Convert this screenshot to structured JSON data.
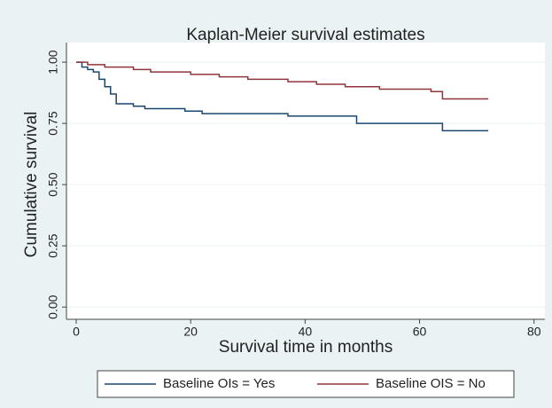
{
  "chart_data": {
    "type": "line",
    "title": "Kaplan-Meier survival estimates",
    "xlabel": "Survival time in months",
    "ylabel": "Cumulative survival",
    "xlim": [
      -1.7,
      81.9
    ],
    "ylim": [
      -0.05,
      1.08
    ],
    "xticks": [
      0,
      20,
      40,
      60,
      80
    ],
    "yticks": [
      {
        "value": 0,
        "label": "0.00"
      },
      0.25,
      {
        "value": 0.5,
        "label": "0.50"
      },
      0.75,
      {
        "value": 1,
        "label": "1.00"
      }
    ],
    "grid": true,
    "step": true,
    "legend": "bottom",
    "series": [
      {
        "name": "Baseline OIs = Yes",
        "color": "#1a476f",
        "x": [
          0,
          1,
          1,
          2,
          2,
          3,
          3,
          4,
          4,
          5,
          5,
          6,
          6,
          7,
          7,
          10,
          10,
          12,
          12,
          19,
          19,
          22,
          22,
          37,
          37,
          49,
          49,
          64,
          64,
          72
        ],
        "values": [
          1,
          1,
          0.98,
          0.98,
          0.97,
          0.97,
          0.96,
          0.96,
          0.93,
          0.93,
          0.9,
          0.9,
          0.87,
          0.87,
          0.83,
          0.83,
          0.82,
          0.82,
          0.81,
          0.81,
          0.8,
          0.8,
          0.79,
          0.79,
          0.78,
          0.78,
          0.75,
          0.75,
          0.72,
          0.72
        ]
      },
      {
        "name": "Baseline OIS = No",
        "color": "#90353b",
        "x": [
          0,
          2,
          2,
          5,
          5,
          10,
          10,
          13,
          13,
          20,
          20,
          25,
          25,
          30,
          30,
          37,
          37,
          42,
          42,
          47,
          47,
          53,
          53,
          62,
          62,
          64,
          64,
          72
        ],
        "values": [
          1,
          1,
          0.99,
          0.99,
          0.98,
          0.98,
          0.97,
          0.97,
          0.96,
          0.96,
          0.95,
          0.95,
          0.94,
          0.94,
          0.93,
          0.93,
          0.92,
          0.92,
          0.91,
          0.91,
          0.9,
          0.9,
          0.89,
          0.89,
          0.88,
          0.88,
          0.85,
          0.85
        ]
      }
    ]
  }
}
